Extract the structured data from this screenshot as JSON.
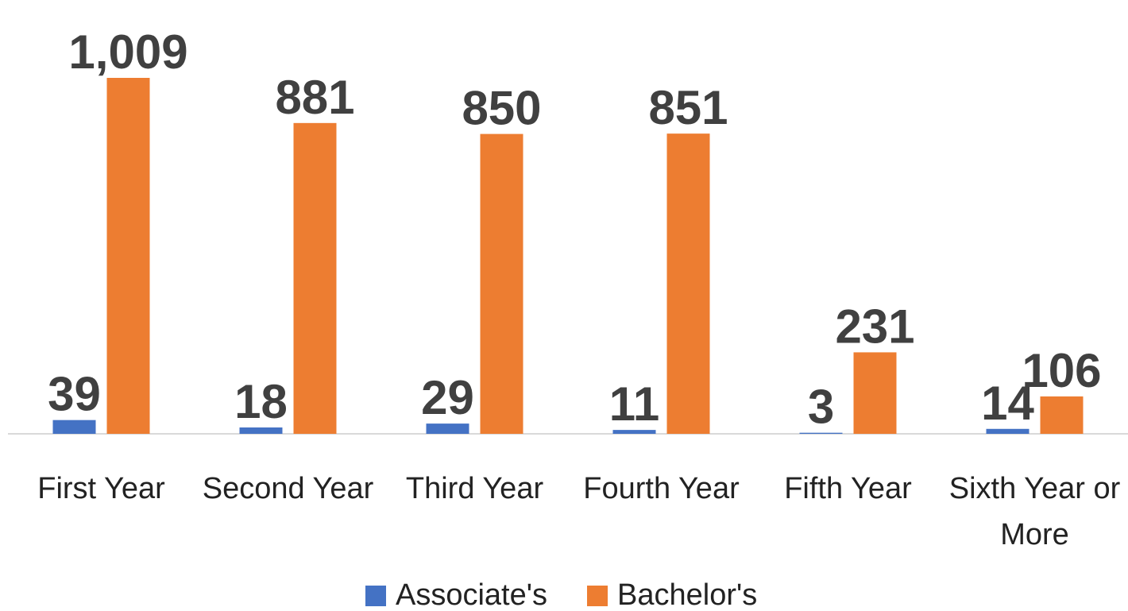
{
  "chart_data": {
    "type": "bar",
    "categories": [
      "First Year",
      "Second Year",
      "Third Year",
      "Fourth Year",
      "Fifth Year",
      "Sixth Year or More"
    ],
    "series": [
      {
        "name": "Associate's",
        "color": "#4472c4",
        "values": [
          39,
          18,
          29,
          11,
          3,
          14
        ]
      },
      {
        "name": "Bachelor's",
        "color": "#ed7d31",
        "values": [
          1009,
          881,
          850,
          851,
          231,
          106
        ],
        "value_labels": [
          "1,009",
          "881",
          "850",
          "851",
          "231",
          "106"
        ]
      }
    ],
    "legend": "bottom",
    "grid": false
  }
}
